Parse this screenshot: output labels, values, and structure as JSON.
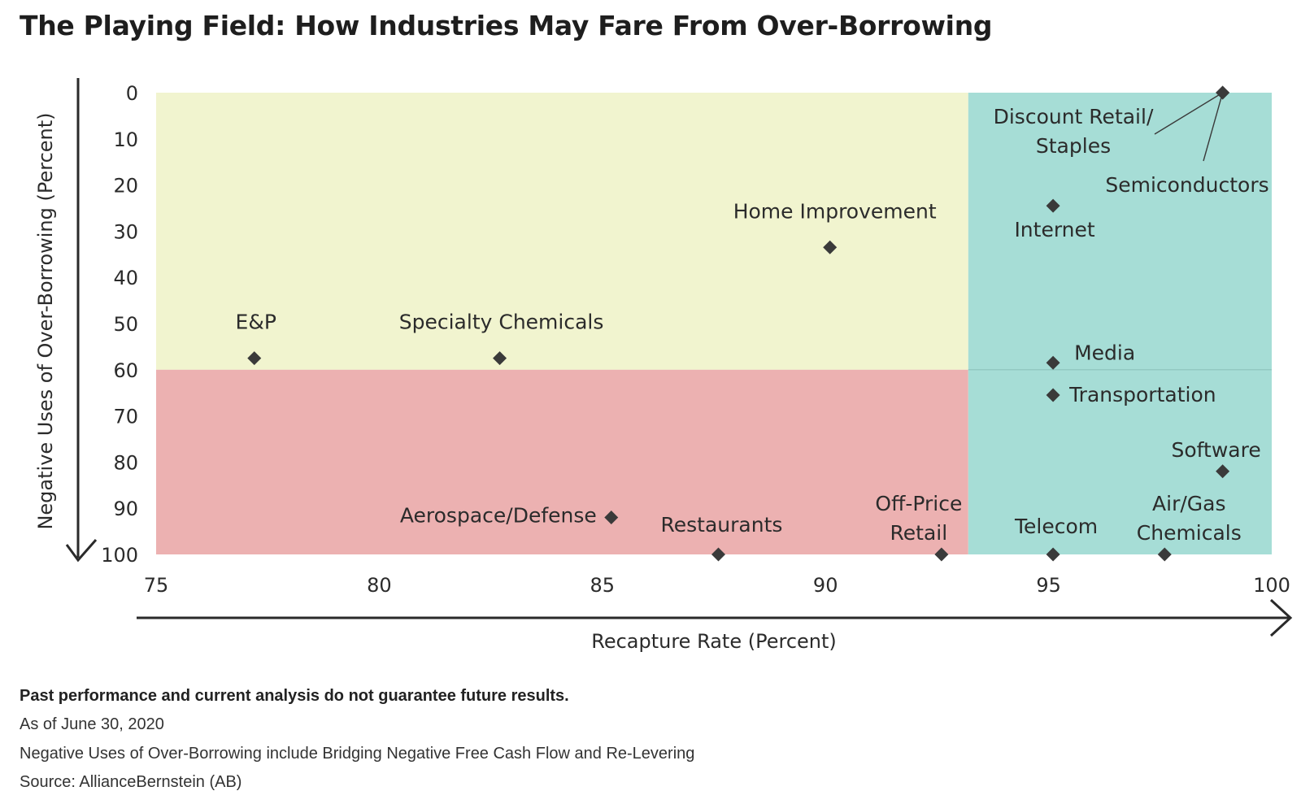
{
  "title": "The Playing Field: How Industries May Fare From Over-Borrowing",
  "chart_data": {
    "type": "scatter",
    "xlabel": "Recapture Rate (Percent)",
    "ylabel": "Negative Uses of Over-Borrowing (Percent)",
    "xlim": [
      75,
      100
    ],
    "ylim": [
      0,
      100
    ],
    "y_axis_inverted": true,
    "x_ticks": [
      75,
      80,
      85,
      90,
      95,
      100
    ],
    "y_ticks": [
      0,
      10,
      20,
      30,
      40,
      50,
      60,
      70,
      80,
      90,
      100
    ],
    "grid": false,
    "regions": [
      {
        "name": "upper-left",
        "x": [
          75,
          93.2
        ],
        "y": [
          0,
          60
        ],
        "color": "#f1f4cf"
      },
      {
        "name": "lower-left",
        "x": [
          75,
          93.2
        ],
        "y": [
          60,
          100
        ],
        "color": "#ecb1b1"
      },
      {
        "name": "right",
        "x": [
          93.2,
          100
        ],
        "y": [
          0,
          100
        ],
        "color": "#a6ddd6"
      }
    ],
    "points": [
      {
        "label": "E&P",
        "x": 77.2,
        "y": 57.5
      },
      {
        "label": "Specialty Chemicals",
        "x": 82.7,
        "y": 57.5
      },
      {
        "label": "Home Improvement",
        "x": 90.1,
        "y": 33.5
      },
      {
        "label": "Discount Retail/\nStaples",
        "x": 98.9,
        "y": 0
      },
      {
        "label": "Semiconductors",
        "x": 98.9,
        "y": 0
      },
      {
        "label": "Internet",
        "x": 95.1,
        "y": 24.5
      },
      {
        "label": "Media",
        "x": 95.1,
        "y": 58.5
      },
      {
        "label": "Transportation",
        "x": 95.1,
        "y": 65.5
      },
      {
        "label": "Software",
        "x": 98.9,
        "y": 82
      },
      {
        "label": "Aerospace/Defense",
        "x": 85.2,
        "y": 92
      },
      {
        "label": "Restaurants",
        "x": 87.6,
        "y": 100
      },
      {
        "label": "Off-Price\nRetail",
        "x": 92.6,
        "y": 100
      },
      {
        "label": "Telecom",
        "x": 95.1,
        "y": 100
      },
      {
        "label": "Air/Gas\nChemicals",
        "x": 97.6,
        "y": 100
      }
    ],
    "marker_color": "#3a3a3a"
  },
  "footer": {
    "disclaimer": "Past performance and current analysis do not guarantee future results.",
    "date": "As of June 30, 2020",
    "note": "Negative Uses of Over-Borrowing include Bridging Negative Free Cash Flow and Re-Levering",
    "source": "Source:  AllianceBernstein (AB)"
  }
}
